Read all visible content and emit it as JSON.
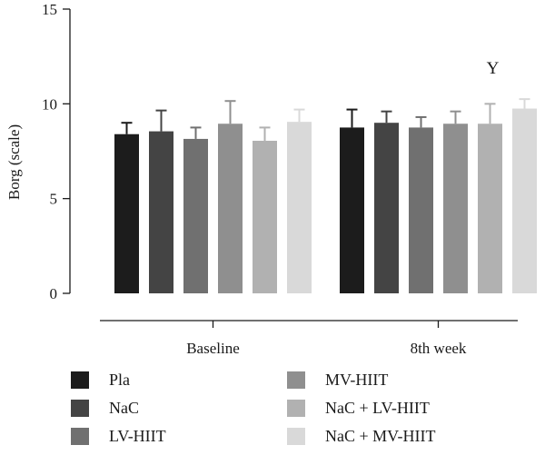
{
  "chart_data": {
    "type": "bar",
    "title": "",
    "xlabel": "",
    "ylabel": "Borg (scale)",
    "ylim": [
      0,
      15
    ],
    "yticks": [
      "0",
      "5",
      "10",
      "15"
    ],
    "grid": false,
    "legend_position": "bottom",
    "categories": [
      "Baseline",
      "8th week"
    ],
    "series": [
      {
        "name": "Pla",
        "color": "#1c1c1c",
        "values": [
          8.4,
          8.75
        ],
        "errors": [
          0.6,
          0.95
        ]
      },
      {
        "name": "NaC",
        "color": "#444444",
        "values": [
          8.55,
          9.0
        ],
        "errors": [
          1.1,
          0.6
        ]
      },
      {
        "name": "LV-HIIT",
        "color": "#707070",
        "values": [
          8.15,
          8.75
        ],
        "errors": [
          0.6,
          0.55
        ]
      },
      {
        "name": "MV-HIIT",
        "color": "#8f8f8f",
        "values": [
          8.95,
          8.95
        ],
        "errors": [
          1.2,
          0.65
        ]
      },
      {
        "name": "NaC + LV-HIIT",
        "color": "#b1b1b1",
        "values": [
          8.05,
          8.95
        ],
        "errors": [
          0.7,
          1.05
        ]
      },
      {
        "name": "NaC + MV-HIIT",
        "color": "#d9d9d9",
        "values": [
          9.05,
          9.75
        ],
        "errors": [
          0.65,
          0.5
        ]
      }
    ],
    "annotations": [
      {
        "text": "Y",
        "category": "8th week",
        "series": "NaC + LV-HIIT"
      }
    ]
  }
}
